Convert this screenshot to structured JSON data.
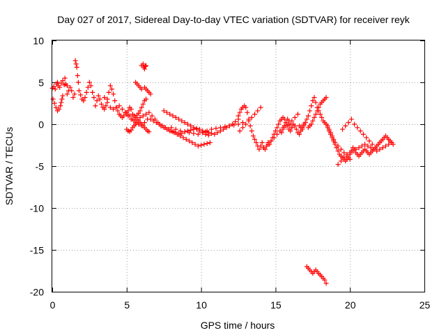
{
  "chart_data": {
    "type": "scatter",
    "title": "Day 027 of 2017, Sidereal Day-to-day VTEC variation (SDTVAR) for receiver reyk",
    "xlabel": "GPS time / hours",
    "ylabel": "SDTVAR / TECUs",
    "xlim": [
      0,
      25
    ],
    "ylim": [
      -20,
      10
    ],
    "xticks": [
      0,
      5,
      10,
      15,
      20,
      25
    ],
    "yticks": [
      -20,
      -15,
      -10,
      -5,
      0,
      5,
      10
    ],
    "xtick_labels": [
      "0",
      "5",
      "10",
      "15",
      "20",
      "25"
    ],
    "ytick_labels": [
      "-20",
      "-15",
      "-10",
      "-5",
      "0",
      "5",
      "10"
    ],
    "grid": true,
    "marker": "+",
    "marker_color": "#ff0000",
    "series": [
      {
        "name": "SDTVAR",
        "x": [
          0.0,
          0.1,
          0.2,
          0.3,
          0.35,
          0.4,
          0.5,
          0.6,
          0.7,
          0.8,
          0.85,
          0.9,
          1.0,
          0.05,
          0.15,
          0.25,
          0.35,
          0.45,
          0.55,
          0.6,
          0.65,
          0.7,
          1.0,
          1.1,
          1.2,
          1.3,
          1.4,
          1.5,
          1.55,
          1.6,
          1.65,
          1.7,
          1.75,
          1.8,
          1.9,
          2.0,
          2.1,
          2.2,
          2.3,
          2.4,
          2.5,
          2.6,
          2.7,
          2.8,
          2.9,
          3.0,
          3.1,
          3.2,
          3.3,
          3.4,
          3.5,
          3.6,
          3.7,
          3.8,
          3.9,
          4.0,
          4.1,
          4.2,
          4.3,
          4.4,
          4.5,
          4.6,
          4.7,
          4.8,
          4.9,
          5.0,
          5.1,
          5.2,
          5.3,
          5.4,
          5.5,
          5.6,
          5.7,
          5.8,
          5.9,
          6.0,
          6.1,
          6.2,
          6.3,
          3.5,
          3.7,
          3.9,
          4.1,
          4.3,
          4.5,
          4.7,
          4.9,
          5.1,
          5.3,
          5.5,
          5.7,
          5.9,
          6.1,
          6.3,
          5.0,
          5.2,
          5.4,
          5.6,
          5.8,
          6.0,
          6.2,
          6.4,
          5.0,
          5.1,
          5.2,
          5.3,
          5.4,
          5.5,
          5.6,
          5.7,
          5.8,
          5.9,
          6.0,
          6.1,
          6.2,
          6.3,
          6.4,
          6.5,
          5.6,
          5.7,
          5.8,
          5.9,
          6.0,
          6.2,
          6.3,
          6.4,
          6.5,
          6.6,
          6.0,
          6.1,
          6.15,
          6.2,
          6.25,
          6.3,
          6.5,
          6.7,
          6.9,
          7.1,
          7.3,
          7.5,
          7.7,
          7.9,
          8.1,
          8.3,
          8.5,
          8.7,
          8.9,
          9.1,
          9.3,
          9.5,
          9.7,
          9.9,
          10.1,
          10.3,
          10.5,
          10.7,
          10.9,
          11.1,
          11.3,
          11.5,
          11.7,
          11.9,
          12.1,
          12.3,
          12.5,
          6.6,
          6.8,
          7.0,
          7.2,
          7.4,
          7.6,
          7.8,
          8.0,
          8.2,
          8.4,
          8.6,
          8.8,
          9.0,
          9.2,
          9.4,
          9.6,
          9.8,
          10.0,
          10.2,
          10.4,
          10.6,
          7.5,
          7.7,
          7.9,
          8.1,
          8.3,
          8.5,
          8.7,
          8.9,
          9.1,
          9.3,
          9.5,
          9.7,
          9.9,
          10.1,
          10.3,
          10.5,
          8.0,
          8.3,
          8.6,
          8.9,
          9.2,
          9.5,
          9.8,
          10.1,
          10.4,
          10.7,
          11.0,
          11.3,
          11.6,
          11.9,
          12.2,
          12.5,
          12.8,
          12.5,
          12.6,
          12.7,
          12.8,
          12.9,
          13.0,
          13.1,
          13.2,
          13.3,
          13.4,
          13.5,
          13.6,
          13.7,
          13.8,
          13.9,
          14.0,
          14.1,
          14.2,
          12.6,
          12.8,
          13.0,
          13.2,
          13.4,
          13.6,
          13.8,
          14.0,
          14.2,
          14.3,
          14.4,
          14.5,
          14.6,
          14.7,
          14.8,
          14.9,
          15.0,
          15.1,
          15.2,
          15.3,
          15.4,
          15.5,
          15.6,
          15.7,
          15.8,
          15.9,
          16.0,
          16.1,
          16.2,
          16.3,
          16.4,
          16.5,
          16.6,
          16.7,
          16.8,
          16.9,
          17.0,
          14.5,
          14.7,
          14.9,
          15.1,
          15.3,
          15.5,
          15.7,
          15.9,
          16.1,
          16.3,
          16.5,
          15.4,
          15.5,
          15.6,
          15.7,
          15.8,
          15.9,
          16.0,
          16.1,
          16.6,
          16.7,
          16.8,
          16.9,
          17.0,
          17.1,
          17.2,
          17.3,
          17.4,
          17.5,
          17.6,
          17.7,
          17.8,
          17.9,
          18.0,
          18.1,
          18.2,
          18.3,
          18.4,
          18.5,
          18.6,
          18.7,
          18.8,
          18.9,
          19.0,
          19.1,
          19.2,
          19.3,
          19.4,
          19.5,
          19.6,
          19.7,
          19.8,
          19.9,
          20.0,
          20.1,
          20.2,
          20.3,
          20.4,
          20.5,
          20.6,
          20.7,
          20.8,
          20.9,
          21.0,
          21.1,
          21.2,
          21.3,
          21.4,
          21.5,
          21.6,
          21.7,
          21.8,
          21.9,
          22.0,
          22.1,
          22.2,
          22.3,
          22.4,
          22.5,
          22.6,
          22.7,
          22.8,
          22.9,
          17.2,
          17.3,
          17.4,
          17.5,
          17.6,
          17.7,
          17.8,
          17.9,
          18.0,
          18.1,
          18.2,
          18.3,
          18.4,
          18.5,
          18.6,
          18.7,
          18.8,
          18.9,
          19.0,
          19.2,
          19.4,
          19.6,
          19.8,
          20.0,
          19.2,
          19.4,
          19.6,
          19.8,
          20.0,
          20.2,
          20.4,
          20.6,
          20.8,
          21.0,
          21.2,
          21.4,
          21.6,
          21.8,
          22.0,
          22.2,
          22.4,
          22.6,
          22.8,
          19.5,
          19.7,
          19.9,
          20.1,
          20.3,
          20.5,
          20.7,
          20.9,
          21.1,
          21.3,
          21.5,
          21.7,
          17.1,
          17.2,
          17.3,
          17.4,
          17.5,
          17.6,
          17.7,
          17.8,
          17.9,
          18.0,
          18.1,
          18.2,
          18.3,
          18.4
        ],
        "y": [
          4.3,
          4.5,
          4.2,
          4.8,
          5.0,
          4.6,
          4.4,
          4.9,
          5.2,
          4.7,
          5.5,
          4.8,
          4.6,
          3.0,
          2.5,
          2.0,
          1.6,
          1.8,
          2.2,
          2.6,
          3.0,
          3.4,
          3.6,
          4.0,
          4.4,
          4.0,
          3.2,
          3.6,
          7.6,
          7.2,
          6.8,
          5.8,
          5.0,
          4.0,
          3.5,
          3.0,
          2.8,
          3.2,
          3.8,
          4.4,
          5.0,
          4.6,
          3.8,
          3.2,
          2.2,
          2.8,
          3.4,
          3.0,
          2.4,
          2.0,
          1.8,
          2.2,
          3.0,
          3.8,
          4.6,
          4.2,
          3.6,
          2.8,
          2.0,
          1.6,
          1.2,
          1.0,
          0.8,
          1.0,
          1.4,
          1.2,
          1.6,
          2.0,
          1.8,
          1.2,
          1.0,
          0.8,
          1.1,
          1.3,
          1.6,
          2.0,
          2.4,
          2.8,
          3.0,
          3.2,
          2.6,
          2.0,
          1.8,
          2.0,
          2.2,
          1.8,
          1.4,
          1.0,
          0.6,
          0.4,
          0.6,
          0.8,
          1.0,
          1.2,
          1.4,
          1.0,
          0.6,
          0.2,
          0.0,
          -0.2,
          0.2,
          0.6,
          -0.6,
          -0.8,
          -0.9,
          -0.7,
          -0.4,
          -0.2,
          0.0,
          0.2,
          0.4,
          0.2,
          0.0,
          -0.2,
          -0.4,
          -0.6,
          -0.8,
          -0.9,
          5.0,
          4.8,
          4.6,
          4.4,
          4.2,
          4.4,
          4.2,
          4.0,
          3.8,
          3.6,
          7.0,
          7.2,
          6.8,
          6.6,
          6.9,
          7.0,
          1.4,
          1.0,
          0.6,
          0.2,
          -0.2,
          -0.4,
          -0.6,
          -0.8,
          -0.9,
          -1.0,
          -1.2,
          -1.1,
          -0.9,
          -0.8,
          -0.7,
          -0.6,
          -0.5,
          -0.6,
          -0.8,
          -0.9,
          -1.0,
          -1.1,
          -1.2,
          -1.0,
          -0.8,
          -0.6,
          -0.4,
          -0.2,
          0.0,
          0.3,
          0.6,
          0.6,
          0.4,
          0.2,
          0.0,
          -0.2,
          -0.4,
          -0.6,
          -0.8,
          -1.0,
          -1.2,
          -1.4,
          -1.6,
          -1.8,
          -2.0,
          -2.2,
          -2.4,
          -2.6,
          -2.5,
          -2.4,
          -2.3,
          -2.2,
          1.6,
          1.4,
          1.2,
          1.0,
          0.8,
          0.6,
          0.4,
          0.2,
          0.0,
          -0.2,
          -0.4,
          -0.6,
          -0.8,
          -1.0,
          -1.2,
          -1.3,
          -0.4,
          -0.6,
          -0.8,
          -0.9,
          -1.0,
          -1.1,
          -1.2,
          -1.0,
          -0.8,
          -0.6,
          -0.5,
          -0.4,
          -0.3,
          -0.2,
          -0.1,
          0.0,
          0.2,
          1.0,
          1.4,
          1.8,
          2.0,
          2.2,
          2.0,
          1.4,
          0.6,
          -0.2,
          -0.8,
          -1.4,
          -1.8,
          -2.2,
          -2.6,
          -3.0,
          -2.6,
          -2.2,
          -2.8,
          -0.8,
          -0.4,
          0.0,
          0.4,
          0.8,
          1.2,
          1.6,
          2.0,
          -2.8,
          -3.0,
          -2.6,
          -2.2,
          -2.4,
          -2.0,
          -1.6,
          -1.2,
          -0.8,
          -0.4,
          0.0,
          0.4,
          0.6,
          0.8,
          0.6,
          0.2,
          -0.2,
          -0.6,
          -0.8,
          -0.4,
          0.0,
          -0.2,
          -0.6,
          -1.0,
          -1.2,
          -0.8,
          -0.4,
          0.0,
          0.2,
          -2.4,
          -2.0,
          -1.6,
          -1.2,
          -0.8,
          -0.4,
          -0.2,
          0.0,
          0.4,
          0.8,
          1.2,
          -1.0,
          -0.6,
          -0.2,
          0.2,
          0.6,
          0.4,
          0.0,
          -0.4,
          -0.2,
          -0.4,
          -0.6,
          -0.2,
          0.2,
          0.6,
          1.0,
          1.6,
          2.2,
          2.8,
          3.2,
          2.6,
          2.0,
          1.6,
          1.2,
          0.8,
          0.4,
          0.2,
          0.0,
          -0.4,
          -0.8,
          -1.2,
          -1.6,
          -2.0,
          -2.4,
          -2.8,
          -3.2,
          -3.6,
          -3.8,
          -4.0,
          -4.2,
          -4.4,
          -4.2,
          -4.0,
          -3.6,
          -3.2,
          -2.8,
          -3.0,
          -3.4,
          -3.6,
          -3.8,
          -3.6,
          -3.4,
          -3.2,
          -3.0,
          -3.2,
          -3.4,
          -3.6,
          -3.4,
          -3.2,
          -3.0,
          -2.8,
          -2.6,
          -2.4,
          -2.2,
          -2.0,
          -1.8,
          -1.6,
          -1.4,
          -1.6,
          -1.8,
          -2.0,
          -2.2,
          -2.4,
          -0.4,
          -0.2,
          0.0,
          0.4,
          0.8,
          1.2,
          1.6,
          2.0,
          2.4,
          2.6,
          2.8,
          3.0,
          3.2,
          -0.2,
          -0.6,
          -1.0,
          -1.4,
          -1.8,
          -2.2,
          -2.6,
          -3.0,
          -3.4,
          -3.8,
          -4.2,
          -4.8,
          -4.4,
          -4.0,
          -3.6,
          -3.4,
          -3.2,
          -3.0,
          -2.8,
          -2.6,
          -2.4,
          -2.6,
          -2.8,
          -3.0,
          -3.2,
          -3.0,
          -2.8,
          -2.6,
          -2.4,
          -2.2,
          -0.6,
          -0.2,
          0.2,
          0.6,
          0.0,
          -0.4,
          -0.8,
          -1.2,
          -1.6,
          -2.0,
          -2.4,
          -2.8,
          -17.0,
          -17.2,
          -17.4,
          -17.6,
          -17.8,
          -17.6,
          -17.4,
          -17.6,
          -17.8,
          -18.0,
          -18.2,
          -18.4,
          -18.6,
          -19.0
        ]
      }
    ]
  }
}
